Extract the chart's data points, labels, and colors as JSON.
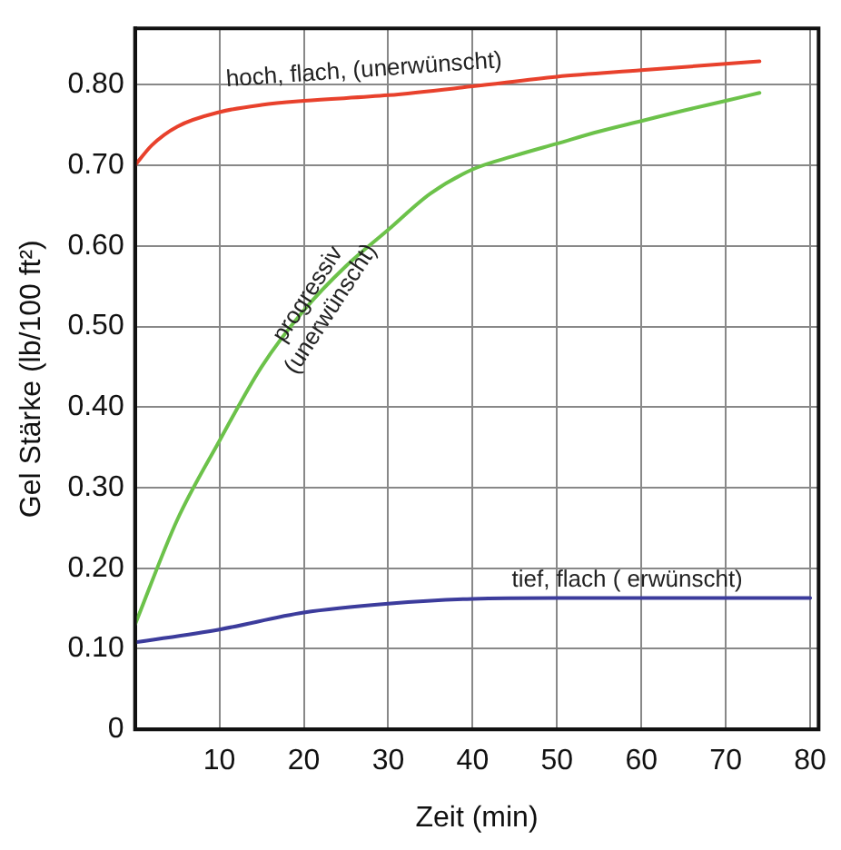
{
  "chart_data": {
    "type": "line",
    "xlabel": "Zeit (min)",
    "ylabel": "Gel Stärke (lb/100 ft²)",
    "xlim": [
      0,
      81
    ],
    "xticks": [
      10,
      20,
      30,
      40,
      50,
      60,
      70,
      80
    ],
    "ylim": [
      0,
      0.87
    ],
    "yticks": [
      0,
      {
        "value": 0.1,
        "label": "0.10"
      },
      {
        "value": 0.2,
        "label": "0.20"
      },
      {
        "value": 0.3,
        "label": "0.30"
      },
      {
        "value": 0.4,
        "label": "0.40"
      },
      {
        "value": 0.5,
        "label": "0.50"
      },
      {
        "value": 0.6,
        "label": "0.60"
      },
      {
        "value": 0.7,
        "label": "0.70"
      },
      {
        "value": 0.8,
        "label": "0.80"
      }
    ],
    "grid": true,
    "legend": false,
    "marker": "none",
    "line_style": "solid",
    "series": [
      {
        "color": "#e8412c",
        "x": [
          0,
          2,
          5,
          10,
          15,
          20,
          30,
          40,
          50,
          60,
          70,
          74
        ],
        "values": [
          0.7,
          0.725,
          0.748,
          0.766,
          0.775,
          0.78,
          0.787,
          0.798,
          0.81,
          0.818,
          0.826,
          0.829
        ]
      },
      {
        "color": "#6cc24a",
        "x": [
          0,
          5,
          10,
          15,
          20,
          25,
          30,
          35,
          40,
          45,
          50,
          55,
          60,
          65,
          70,
          74
        ],
        "values": [
          0.13,
          0.26,
          0.358,
          0.45,
          0.52,
          0.575,
          0.62,
          0.665,
          0.695,
          0.712,
          0.727,
          0.742,
          0.755,
          0.768,
          0.78,
          0.79
        ]
      },
      {
        "color": "#3c3c9c",
        "x": [
          0,
          10,
          20,
          30,
          40,
          50,
          60,
          70,
          80
        ],
        "values": [
          0.108,
          0.124,
          0.145,
          0.156,
          0.162,
          0.163,
          0.163,
          0.163,
          0.163
        ]
      }
    ],
    "annotations": [
      "hoch, flach, (unerwünscht)",
      "progressiv (unerwünscht)",
      "tief, flach ( erwünscht)"
    ]
  }
}
